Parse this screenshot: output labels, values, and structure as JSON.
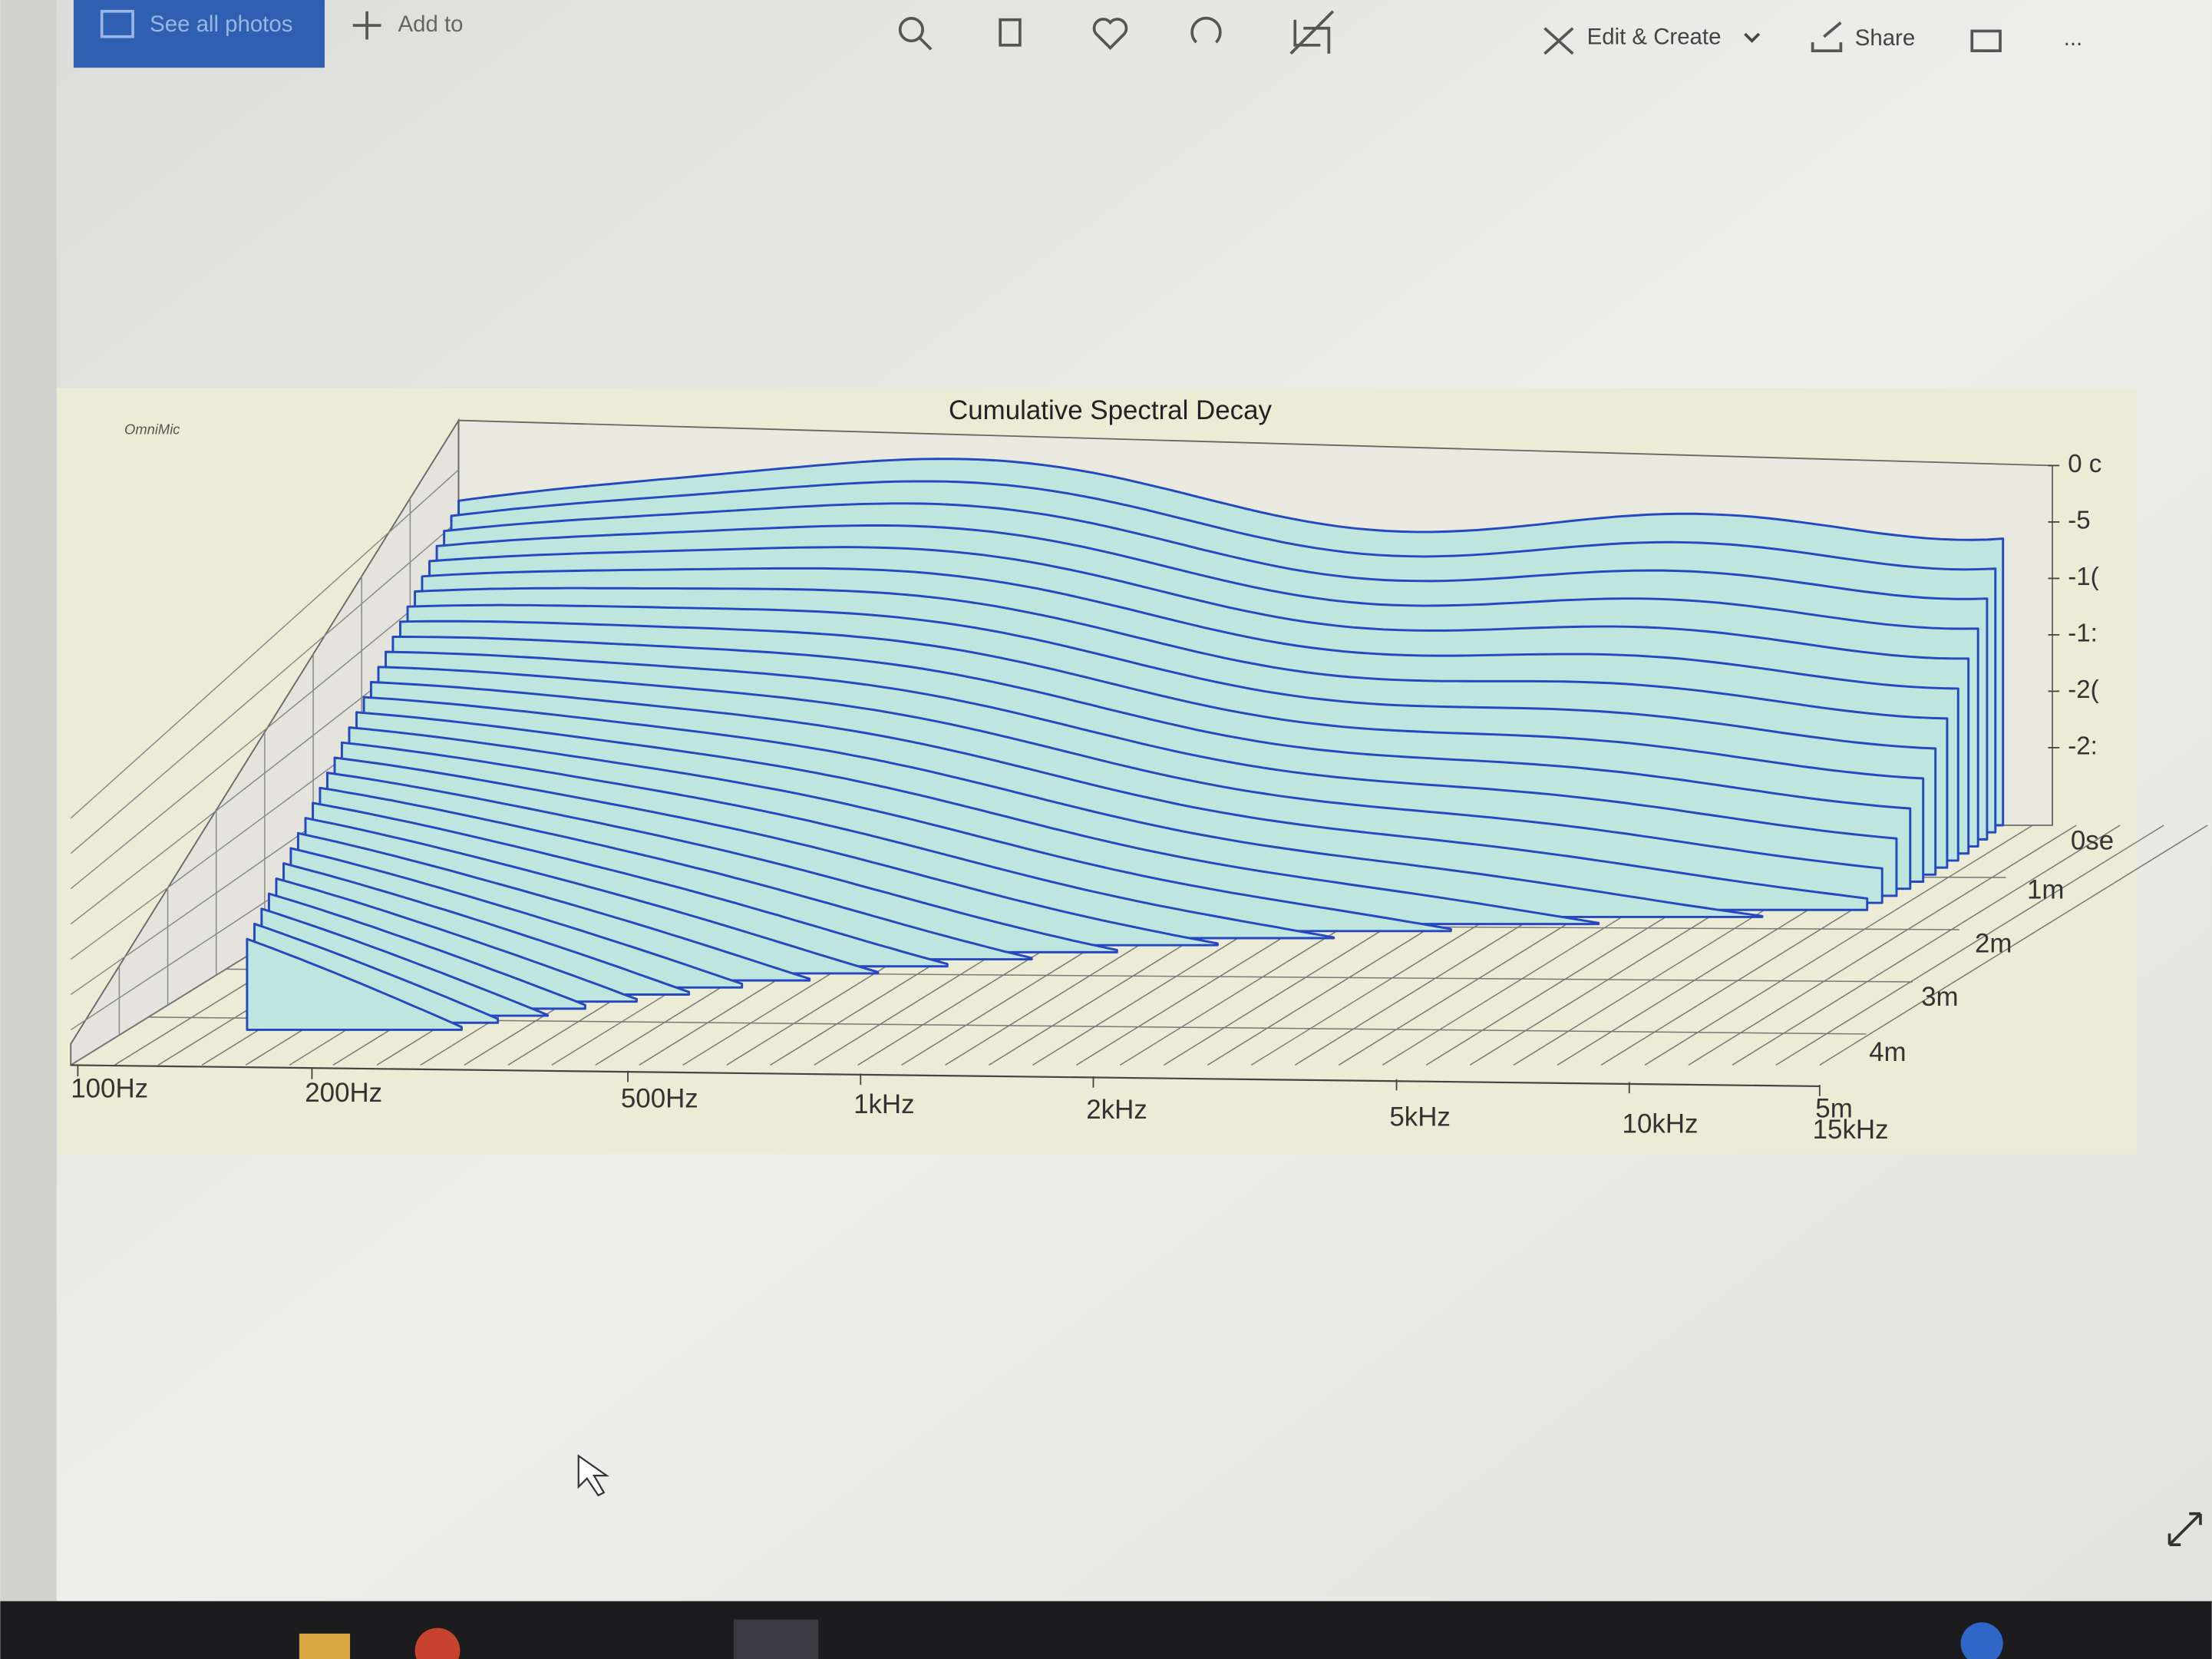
{
  "toolbar": {
    "see_all_photos": "See all photos",
    "add_to": "Add to",
    "edit_create": "Edit & Create",
    "share": "Share",
    "more": "..."
  },
  "chart": {
    "title": "Cumulative Spectral Decay",
    "watermark": "OmniMic",
    "frequency_labels": [
      "100Hz",
      "200Hz",
      "500Hz",
      "1kHz",
      "2kHz",
      "5kHz",
      "10kHz",
      "15kHz"
    ],
    "level_labels": [
      "0 c",
      "-5",
      "-1(",
      "-1:",
      "-2(",
      "-2:"
    ],
    "time_labels": [
      "0se",
      "1m",
      "2m",
      "3m",
      "4m",
      "5m"
    ]
  }
}
